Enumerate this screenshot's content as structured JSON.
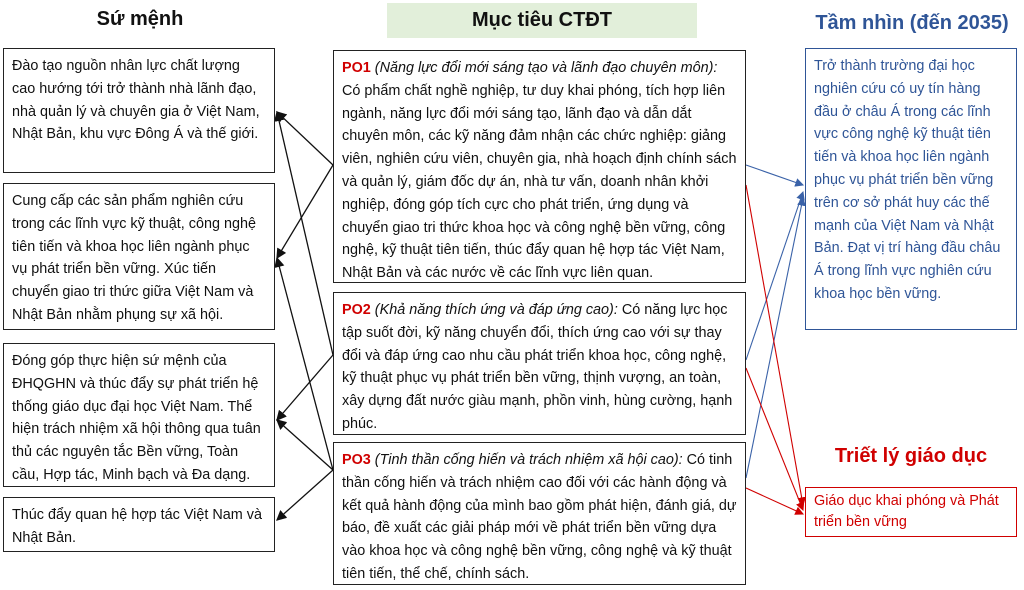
{
  "mission": {
    "title": "Sứ mệnh",
    "items": [
      "Đào tạo nguồn nhân lực chất lượng cao hướng tới trở thành nhà lãnh đạo, nhà quản lý và chuyên gia ở Việt Nam, Nhật Bản, khu vực Đông Á và thế giới.",
      "Cung cấp các sản phẩm nghiên cứu trong các lĩnh vực kỹ thuật, công nghệ tiên tiến và khoa học liên ngành phục vụ phát triển bền vững. Xúc tiến chuyển giao tri thức giữa Việt Nam và Nhật Bản nhằm phụng sự xã hội.",
      "Đóng góp thực hiện sứ mệnh của ĐHQGHN và thúc đẩy sự phát triển hệ thống giáo dục đại học Việt Nam. Thể hiện trách nhiệm xã hội thông qua tuân thủ các nguyên tắc Bền vững, Toàn cầu, Hợp tác, Minh bạch và Đa dạng.",
      "Thúc đẩy quan hệ hợp tác Việt Nam và Nhật Bản."
    ]
  },
  "objectives": {
    "title": "Mục tiêu CTĐT",
    "items": [
      {
        "code": "PO1",
        "title": "(Năng lực đổi mới sáng tạo và lãnh đạo chuyên môn):",
        "text": "Có phẩm chất nghề nghiệp, tư duy khai phóng, tích hợp liên ngành, năng lực đổi mới sáng tạo, lãnh đạo và dẫn dắt chuyên môn, các kỹ năng đảm nhận các chức nghiệp: giảng viên, nghiên cứu viên, chuyên gia, nhà hoạch định chính sách và quản lý, giám đốc dự án, nhà tư vấn, doanh nhân khởi nghiệp, đóng góp tích cực cho phát triển, ứng dụng và chuyển giao tri thức khoa học và công nghệ bền vững, công nghệ, kỹ thuật tiên tiến, thúc đẩy quan hệ hợp tác Việt Nam, Nhật Bản và các nước về các lĩnh vực liên quan."
      },
      {
        "code": "PO2",
        "title": "(Khả năng thích ứng và đáp ứng cao):",
        "text": "Có năng lực học tập suốt đời, kỹ năng chuyển đổi, thích ứng cao với sự thay đổi và đáp ứng cao nhu cầu phát triển khoa học, công nghệ, kỹ thuật phục vụ phát triển bền vững, thịnh vượng, an toàn, xây dựng đất nước giàu mạnh, phồn vinh, hùng cường, hạnh phúc."
      },
      {
        "code": "PO3",
        "title": "(Tinh thần cống hiến và trách nhiệm xã hội cao):",
        "text": "Có tinh thần cống hiến và trách nhiệm cao đối với các hành động và kết quả hành động của mình bao gồm phát hiện, đánh giá, dự báo, đề xuất các giải pháp mới về phát triển bền vững dựa vào khoa học và công nghệ bền vững, công nghệ và kỹ thuật tiên tiến, thể chế, chính sách."
      }
    ]
  },
  "vision": {
    "title": "Tầm nhìn (đến 2035)",
    "text": "Trở thành trường đại học nghiên cứu có uy tín hàng đầu ở châu Á trong các lĩnh vực công nghệ kỹ thuật tiên tiến và khoa học liên ngành phục vụ phát triển bền vững trên cơ sở phát huy các thế mạnh của Việt Nam và Nhật Bản. Đạt vị trí hàng đầu châu Á trong lĩnh vực nghiên cứu khoa học bền vững."
  },
  "philosophy": {
    "title": "Triết lý giáo dục",
    "text": "Giáo dục khai phóng và Phát triển bền vững"
  }
}
